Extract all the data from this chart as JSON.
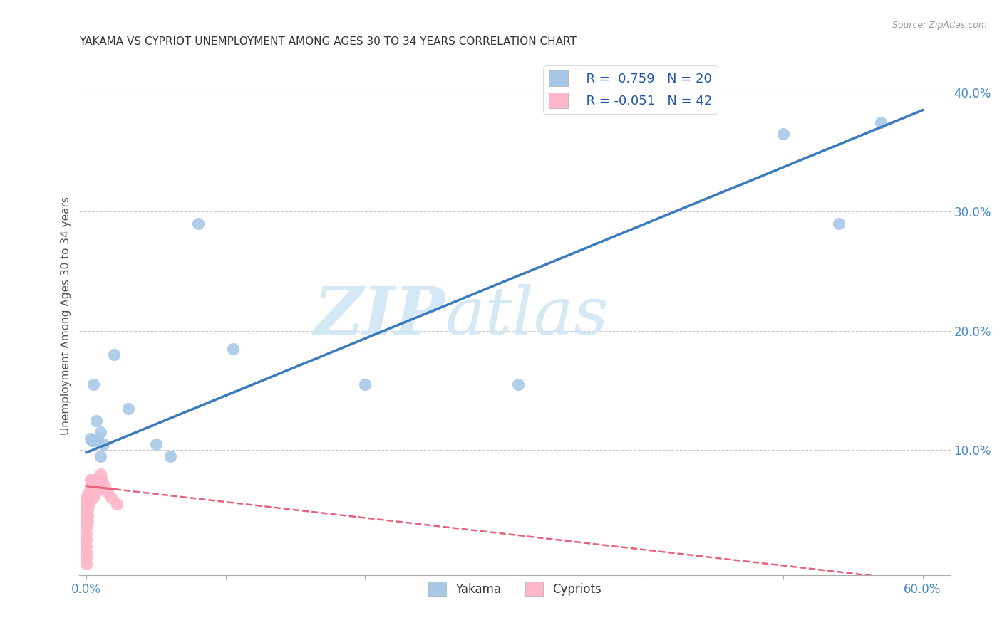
{
  "title": "YAKAMA VS CYPRIOT UNEMPLOYMENT AMONG AGES 30 TO 34 YEARS CORRELATION CHART",
  "source": "Source: ZipAtlas.com",
  "xlabel": "",
  "ylabel": "Unemployment Among Ages 30 to 34 years",
  "xlim": [
    -0.005,
    0.62
  ],
  "ylim": [
    -0.005,
    0.43
  ],
  "xtick_positions": [
    0.0,
    0.1,
    0.2,
    0.3,
    0.4,
    0.5,
    0.6
  ],
  "xtick_labels": [
    "0.0%",
    "",
    "",
    "",
    "",
    "",
    "60.0%"
  ],
  "yticks": [
    0.1,
    0.2,
    0.3,
    0.4
  ],
  "yakama_color": "#a8c8e8",
  "cypriot_color": "#ffb6c8",
  "yakama_line_color": "#3a7abf",
  "cypriot_line_color": "#e8607a",
  "yakama_R": 0.759,
  "yakama_N": 20,
  "cypriot_R": -0.051,
  "cypriot_N": 42,
  "watermark_zip": "ZIP",
  "watermark_atlas": "atlas",
  "background_color": "#ffffff",
  "grid_color": "#cccccc",
  "yakama_x": [
    0.003,
    0.004,
    0.005,
    0.006,
    0.007,
    0.008,
    0.01,
    0.01,
    0.012,
    0.02,
    0.03,
    0.05,
    0.06,
    0.08,
    0.105,
    0.2,
    0.31,
    0.5,
    0.54,
    0.57
  ],
  "yakama_y": [
    0.11,
    0.108,
    0.155,
    0.108,
    0.125,
    0.11,
    0.115,
    0.095,
    0.105,
    0.18,
    0.135,
    0.105,
    0.095,
    0.29,
    0.185,
    0.155,
    0.155,
    0.365,
    0.29,
    0.375
  ],
  "cypriot_x": [
    0.0,
    0.0,
    0.0,
    0.0,
    0.0,
    0.0,
    0.0,
    0.0,
    0.0,
    0.0,
    0.0,
    0.0,
    0.001,
    0.001,
    0.001,
    0.001,
    0.001,
    0.002,
    0.002,
    0.002,
    0.003,
    0.003,
    0.003,
    0.004,
    0.004,
    0.005,
    0.005,
    0.005,
    0.006,
    0.006,
    0.007,
    0.007,
    0.008,
    0.008,
    0.009,
    0.01,
    0.01,
    0.011,
    0.013,
    0.015,
    0.018,
    0.022
  ],
  "cypriot_y": [
    0.005,
    0.01,
    0.015,
    0.02,
    0.025,
    0.03,
    0.035,
    0.04,
    0.045,
    0.05,
    0.055,
    0.06,
    0.04,
    0.045,
    0.05,
    0.055,
    0.06,
    0.055,
    0.06,
    0.065,
    0.065,
    0.07,
    0.075,
    0.07,
    0.075,
    0.06,
    0.065,
    0.07,
    0.07,
    0.075,
    0.065,
    0.07,
    0.07,
    0.075,
    0.068,
    0.075,
    0.08,
    0.075,
    0.07,
    0.065,
    0.06,
    0.055
  ]
}
